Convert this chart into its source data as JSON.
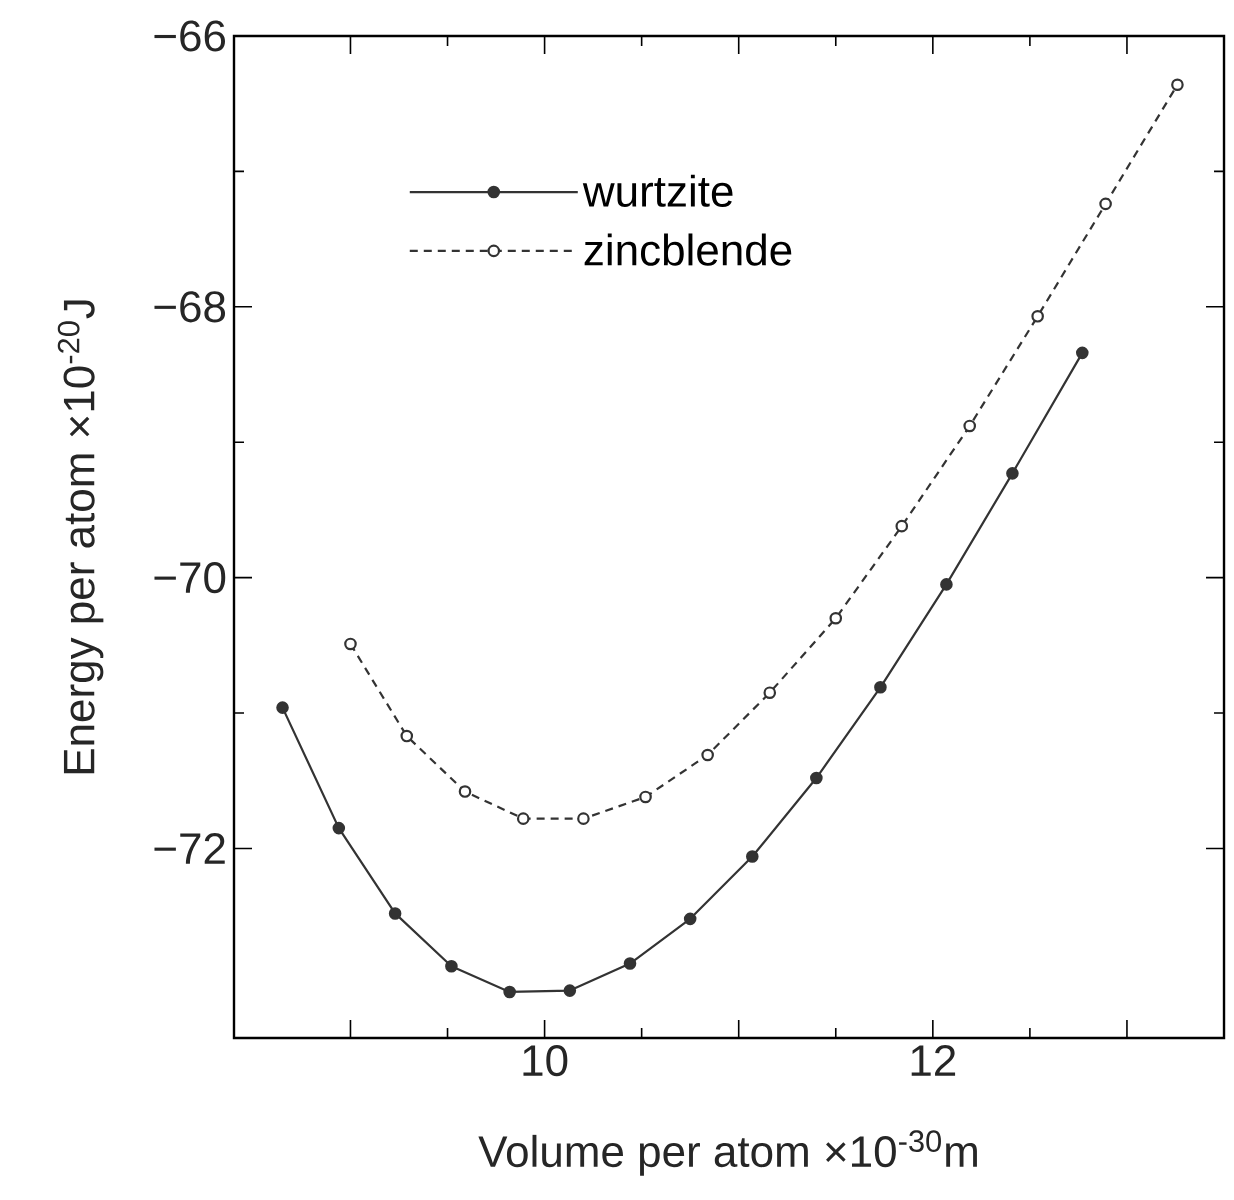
{
  "chart_data": {
    "type": "line",
    "xlabel": "Volume per atom   ×10$^{-30}$m",
    "ylabel": "Energy per atom  ×10$^{-20}$J",
    "xlim": [
      8.4,
      13.5
    ],
    "ylim": [
      -73.4,
      -66
    ],
    "xticks": [
      {
        "value": 9,
        "label": null
      },
      10,
      {
        "value": 11,
        "label": null
      },
      12,
      {
        "value": 13,
        "label": null
      }
    ],
    "yticks": [
      {
        "value": -72,
        "label": "−72"
      },
      {
        "value": -70,
        "label": "−70"
      },
      {
        "value": -68,
        "label": "−68"
      },
      {
        "value": -66,
        "label": "−66"
      }
    ],
    "legend": "top left",
    "marker": "circle",
    "grid": false,
    "series": [
      {
        "name": "wurtzite",
        "color": "#333333",
        "line_style": "solid",
        "x": [
          8.65,
          8.94,
          9.23,
          9.52,
          9.82,
          10.13,
          10.44,
          10.75,
          11.07,
          11.4,
          11.73,
          12.07,
          12.41,
          12.77
        ],
        "values": [
          -70.96,
          -71.85,
          -72.48,
          -72.87,
          -73.06,
          -73.05,
          -72.85,
          -72.52,
          -72.06,
          -71.48,
          -70.81,
          -70.05,
          -69.23,
          -68.34
        ]
      },
      {
        "name": "zincblende",
        "color": "#333333",
        "line_style": "dashed",
        "x": [
          9.0,
          9.29,
          9.59,
          9.89,
          10.2,
          10.52,
          10.84,
          11.16,
          11.5,
          11.84,
          12.19,
          12.54,
          12.89,
          13.26
        ],
        "values": [
          -70.49,
          -71.17,
          -71.58,
          -71.78,
          -71.78,
          -71.62,
          -71.31,
          -70.85,
          -70.3,
          -69.62,
          -68.88,
          -68.07,
          -67.24,
          -66.36
        ]
      }
    ]
  }
}
